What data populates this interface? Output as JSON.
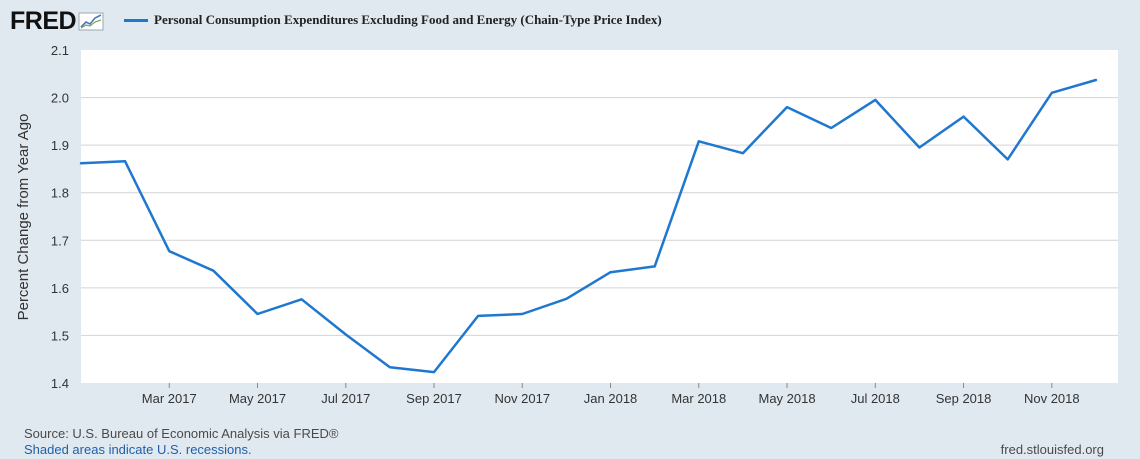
{
  "brand": {
    "logo_text": "FRED"
  },
  "legend": {
    "label": "Personal Consumption Expenditures Excluding Food and Energy (Chain-Type Price Index)",
    "color": "#1f77d0"
  },
  "footer": {
    "source": "Source: U.S. Bureau of Economic Analysis via FRED®",
    "recessions": "Shaded areas indicate U.S. recessions.",
    "url": "fred.stlouisfed.org"
  },
  "chart_data": {
    "type": "line",
    "title": "",
    "xlabel": "",
    "ylabel": "Percent Change from Year Ago",
    "ylim": [
      1.4,
      2.1
    ],
    "yticks": [
      "1.4",
      "1.5",
      "1.6",
      "1.7",
      "1.8",
      "1.9",
      "2.0",
      "2.1"
    ],
    "xticks": [
      "Mar 2017",
      "May 2017",
      "Jul 2017",
      "Sep 2017",
      "Nov 2017",
      "Jan 2018",
      "Mar 2018",
      "May 2018",
      "Jul 2018",
      "Sep 2018",
      "Nov 2018"
    ],
    "grid": true,
    "series": [
      {
        "name": "Personal Consumption Expenditures Excluding Food and Energy (Chain-Type Price Index)",
        "color": "#1f77d0",
        "x": [
          "2017-01",
          "2017-02",
          "2017-03",
          "2017-04",
          "2017-05",
          "2017-06",
          "2017-07",
          "2017-08",
          "2017-09",
          "2017-10",
          "2017-11",
          "2017-12",
          "2018-01",
          "2018-02",
          "2018-03",
          "2018-04",
          "2018-05",
          "2018-06",
          "2018-07",
          "2018-08",
          "2018-09",
          "2018-10",
          "2018-11",
          "2018-12"
        ],
        "values": [
          1.862,
          1.866,
          1.677,
          1.636,
          1.545,
          1.576,
          1.502,
          1.433,
          1.423,
          1.541,
          1.545,
          1.577,
          1.633,
          1.645,
          1.908,
          1.883,
          1.98,
          1.936,
          1.995,
          1.895,
          1.96,
          1.87,
          2.01,
          2.037
        ]
      }
    ]
  }
}
